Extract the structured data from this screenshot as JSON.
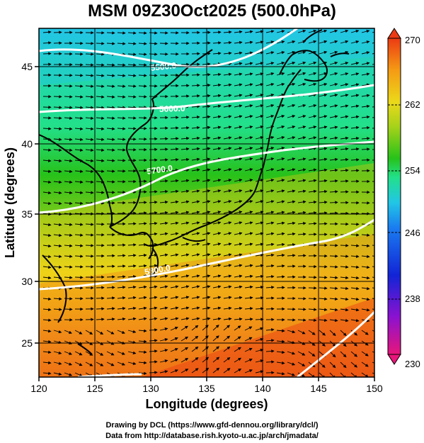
{
  "title": "MSM 09Z30Oct2025 (500.0hPa)",
  "xlabel": "Longitude (degrees)",
  "ylabel": "Latitude  (degrees)",
  "credit_line1": "Drawing by DCL (https://www.gfd-dennou.org/library/dcl/)",
  "credit_line2": "Data from http://database.rish.kyoto-u.ac.jp/arch/jmadata/",
  "map": {
    "lon_range": [
      120,
      150
    ],
    "lat_range": [
      22.4,
      47.6
    ],
    "x_ticks": [
      120,
      125,
      130,
      135,
      140,
      145,
      150
    ],
    "y_ticks": [
      25,
      30,
      35,
      40,
      45
    ],
    "graticule": "5-degree black lines",
    "contour_field": "geopotential height (m)",
    "contour_lines": [
      {
        "label": "5500.0",
        "label_lon": 136.8,
        "label_lat": 45.6
      },
      {
        "label": "5600.0",
        "label_lon": 132.8,
        "label_lat": 42.6
      },
      {
        "label": "5700.0",
        "label_lon": 134.2,
        "label_lat": 38.0
      },
      {
        "label": "5800.0",
        "label_lon": 132.6,
        "label_lat": 31.0
      }
    ],
    "vectors": "wind arrows, generally westerly"
  },
  "colorbar": {
    "min": 230,
    "max": 270,
    "tick_labels": [
      "270",
      "262",
      "254",
      "246",
      "238",
      "230"
    ],
    "tick_values": [
      270,
      262,
      254,
      246,
      238,
      230
    ],
    "colors": [
      "#e8167a",
      "#8a12d0",
      "#1224d6",
      "#1a7cf0",
      "#22c6e6",
      "#22e08a",
      "#27c21a",
      "#a6d21a",
      "#ecd81a",
      "#f59a14",
      "#ec3a14"
    ]
  }
}
